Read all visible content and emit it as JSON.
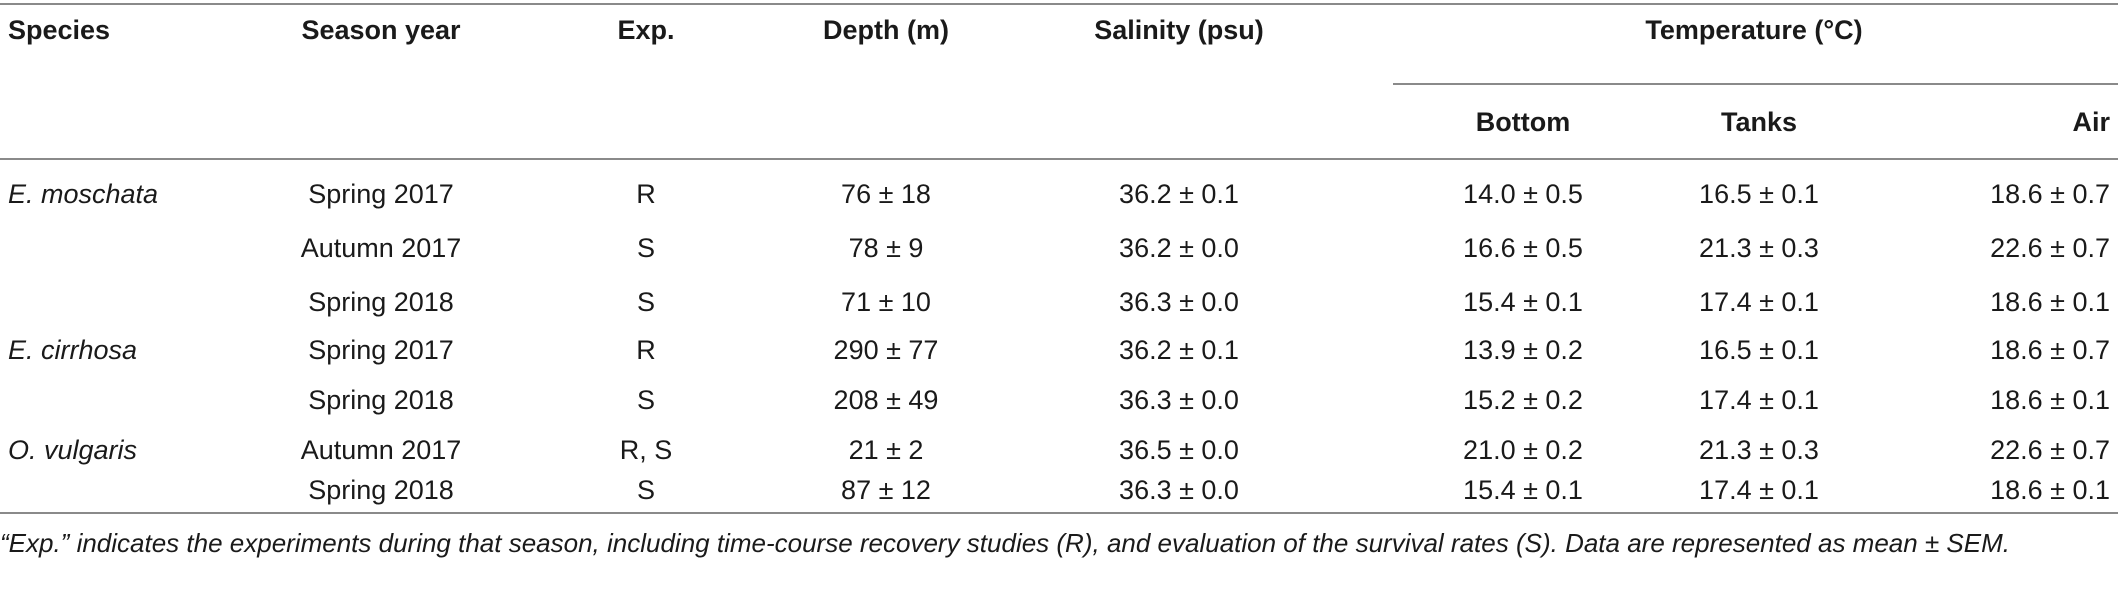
{
  "headers": {
    "species": "Species",
    "season_year": "Season year",
    "exp": "Exp.",
    "depth": "Depth (m)",
    "salinity": "Salinity (psu)",
    "temperature": "Temperature (°C)",
    "bottom": "Bottom",
    "tanks": "Tanks",
    "air": "Air"
  },
  "rows": [
    {
      "species": "E. moschata",
      "season": "Spring 2017",
      "exp": "R",
      "depth": "76 ± 18",
      "salinity": "36.2 ± 0.1",
      "bottom": "14.0 ± 0.5",
      "tanks": "16.5 ± 0.1",
      "air": "18.6 ± 0.7"
    },
    {
      "species": "",
      "season": "Autumn 2017",
      "exp": "S",
      "depth": "78 ± 9",
      "salinity": "36.2 ± 0.0",
      "bottom": "16.6 ± 0.5",
      "tanks": "21.3 ± 0.3",
      "air": "22.6 ± 0.7"
    },
    {
      "species": "",
      "season": "Spring 2018",
      "exp": "S",
      "depth": "71 ± 10",
      "salinity": "36.3 ± 0.0",
      "bottom": "15.4 ± 0.1",
      "tanks": "17.4 ± 0.1",
      "air": "18.6 ± 0.1"
    },
    {
      "species": "E. cirrhosa",
      "season": "Spring 2017",
      "exp": "R",
      "depth": "290 ± 77",
      "salinity": "36.2 ± 0.1",
      "bottom": "13.9 ± 0.2",
      "tanks": "16.5 ± 0.1",
      "air": "18.6 ± 0.7"
    },
    {
      "species": "",
      "season": "Spring 2018",
      "exp": "S",
      "depth": "208 ± 49",
      "salinity": "36.3 ± 0.0",
      "bottom": "15.2 ± 0.2",
      "tanks": "17.4 ± 0.1",
      "air": "18.6 ± 0.1"
    },
    {
      "species": "O. vulgaris",
      "season": "Autumn 2017",
      "exp": "R, S",
      "depth": "21 ± 2",
      "salinity": "36.5 ± 0.0",
      "bottom": "21.0 ± 0.2",
      "tanks": "21.3 ± 0.3",
      "air": "22.6 ± 0.7"
    },
    {
      "species": "",
      "season": "Spring 2018",
      "exp": "S",
      "depth": "87 ± 12",
      "salinity": "36.3 ± 0.0",
      "bottom": "15.4 ± 0.1",
      "tanks": "17.4 ± 0.1",
      "air": "18.6 ± 0.1"
    }
  ],
  "footnote": "“Exp.” indicates the experiments during that season, including time-course recovery studies (R), and evaluation of the survival rates (S). Data are represented as mean ± SEM."
}
